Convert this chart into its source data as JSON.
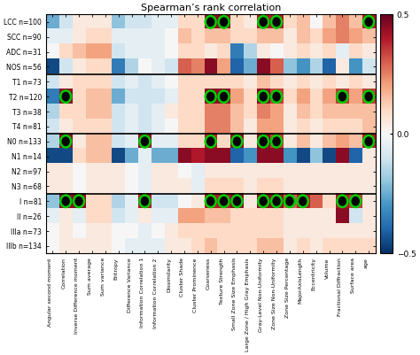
{
  "title": "Spearman’s rank correlation",
  "row_labels": [
    "LCC n=100",
    "SCC n=90",
    "ADC n=31",
    "NOS n=56",
    "T1 n=73",
    "T2 n=120",
    "T3 n=38",
    "T4 n=81",
    "N0 n=133",
    "N1 n=14",
    "N2 n=97",
    "N3 n=68",
    "I n=81",
    "II n=26",
    "IIIa n=73",
    "IIIb n=134"
  ],
  "col_labels": [
    "Angular second moment",
    "Correlation",
    "Inverse Difference moment",
    "Sum average",
    "Sum variance",
    "Entropy",
    "Difference Variance",
    "Information Correlation 1",
    "Information Correlation 2",
    "Dissimilarity",
    "Cluster Shade",
    "Cluster Prominence",
    "Coarseness",
    "Texture Strength",
    "Small Zone Size Emphasis",
    "Large Zone / High Gray Emphasis",
    "Gray-Level Non-Uniformity",
    "Zone Size Non-Uniformity",
    "Zone Size Percentage",
    "MajorAxisLength",
    "Eccentricity",
    "Volume",
    "Fractional Diffraction",
    "Surface area",
    "age"
  ],
  "vmin": -0.5,
  "vmax": 0.5,
  "group_separators": [
    3,
    7,
    11
  ],
  "data": [
    [
      -0.25,
      -0.1,
      0.05,
      0.05,
      0.05,
      -0.2,
      -0.1,
      -0.1,
      -0.05,
      -0.05,
      0.1,
      0.1,
      0.45,
      0.45,
      0.1,
      0.05,
      0.4,
      0.4,
      0.1,
      0.15,
      0.0,
      0.15,
      0.25,
      0.15,
      0.4
    ],
    [
      -0.05,
      -0.05,
      0.05,
      0.1,
      0.1,
      -0.05,
      -0.05,
      -0.05,
      -0.05,
      0.0,
      0.15,
      0.1,
      0.15,
      0.15,
      0.1,
      0.1,
      0.15,
      0.15,
      0.05,
      0.15,
      0.1,
      0.2,
      0.25,
      0.2,
      0.15
    ],
    [
      0.0,
      0.1,
      0.15,
      0.2,
      0.2,
      -0.1,
      -0.05,
      -0.05,
      -0.05,
      0.0,
      0.1,
      0.1,
      0.05,
      0.1,
      -0.35,
      -0.15,
      0.05,
      0.0,
      0.05,
      0.1,
      0.05,
      0.1,
      -0.05,
      0.1,
      0.05
    ],
    [
      -0.45,
      -0.1,
      0.05,
      0.1,
      0.1,
      -0.35,
      -0.15,
      0.0,
      -0.05,
      -0.1,
      0.3,
      0.25,
      0.45,
      0.2,
      -0.4,
      -0.25,
      0.45,
      0.3,
      -0.2,
      -0.3,
      -0.15,
      -0.4,
      0.05,
      -0.3,
      -0.1
    ],
    [
      -0.1,
      0.05,
      0.1,
      0.1,
      0.1,
      -0.1,
      -0.05,
      -0.1,
      -0.05,
      0.0,
      0.1,
      0.1,
      0.1,
      0.1,
      0.1,
      0.05,
      0.15,
      0.1,
      0.05,
      0.1,
      0.05,
      0.1,
      0.05,
      0.1,
      0.05
    ],
    [
      -0.35,
      0.45,
      0.1,
      0.15,
      0.15,
      -0.25,
      -0.1,
      -0.1,
      -0.1,
      -0.05,
      0.1,
      0.1,
      0.45,
      0.45,
      0.2,
      0.1,
      0.45,
      0.35,
      0.1,
      0.2,
      0.1,
      0.2,
      0.35,
      0.2,
      0.35
    ],
    [
      -0.15,
      0.1,
      0.1,
      0.15,
      0.15,
      -0.1,
      -0.05,
      -0.1,
      -0.05,
      0.05,
      0.1,
      0.1,
      0.25,
      0.25,
      0.15,
      0.1,
      0.25,
      0.2,
      0.05,
      0.15,
      0.1,
      0.15,
      0.15,
      0.15,
      0.15
    ],
    [
      -0.1,
      0.05,
      0.1,
      0.1,
      0.1,
      -0.1,
      -0.05,
      -0.1,
      -0.05,
      0.0,
      0.1,
      0.1,
      0.25,
      0.25,
      0.15,
      0.05,
      0.2,
      0.2,
      0.05,
      0.1,
      0.05,
      0.1,
      0.1,
      0.1,
      0.15
    ],
    [
      -0.15,
      0.45,
      0.05,
      0.15,
      0.15,
      -0.1,
      -0.05,
      0.45,
      -0.05,
      -0.05,
      0.1,
      0.1,
      0.4,
      0.1,
      0.45,
      0.05,
      0.45,
      0.35,
      0.05,
      0.15,
      0.05,
      0.15,
      0.2,
      0.15,
      0.4
    ],
    [
      -0.45,
      -0.45,
      0.1,
      0.15,
      0.15,
      -0.45,
      -0.25,
      -0.05,
      -0.25,
      -0.25,
      0.45,
      0.4,
      0.45,
      0.45,
      -0.4,
      -0.3,
      0.45,
      0.45,
      -0.3,
      -0.45,
      -0.2,
      -0.45,
      0.45,
      -0.4,
      0.05
    ],
    [
      0.05,
      0.05,
      0.0,
      0.05,
      0.05,
      0.05,
      0.0,
      -0.05,
      0.05,
      0.05,
      0.0,
      -0.05,
      0.05,
      0.05,
      0.05,
      0.05,
      0.05,
      0.05,
      0.05,
      0.05,
      0.05,
      0.05,
      0.05,
      0.05,
      0.05
    ],
    [
      0.05,
      0.05,
      0.0,
      0.05,
      0.05,
      0.05,
      0.0,
      -0.05,
      0.05,
      0.05,
      0.05,
      -0.05,
      0.1,
      0.1,
      0.1,
      0.05,
      0.1,
      0.1,
      0.05,
      0.05,
      0.05,
      0.05,
      0.05,
      0.05,
      0.05
    ],
    [
      -0.2,
      0.45,
      0.45,
      0.1,
      0.1,
      -0.15,
      -0.05,
      0.4,
      -0.1,
      -0.1,
      0.0,
      0.05,
      0.4,
      0.4,
      0.45,
      0.05,
      0.45,
      0.45,
      0.3,
      0.4,
      0.3,
      0.1,
      0.4,
      0.35,
      0.05
    ],
    [
      -0.05,
      0.05,
      -0.05,
      0.1,
      0.1,
      -0.1,
      -0.05,
      0.05,
      -0.05,
      -0.05,
      0.2,
      0.2,
      0.15,
      0.15,
      0.1,
      0.1,
      0.1,
      0.1,
      0.05,
      0.05,
      0.05,
      0.05,
      0.45,
      -0.1,
      0.05
    ],
    [
      0.0,
      0.05,
      0.0,
      0.05,
      0.05,
      0.0,
      0.0,
      -0.05,
      0.0,
      0.05,
      0.1,
      0.1,
      0.1,
      0.1,
      0.1,
      0.1,
      0.1,
      0.1,
      0.05,
      0.05,
      0.05,
      0.05,
      0.05,
      0.05,
      0.05
    ],
    [
      0.0,
      0.05,
      0.05,
      0.05,
      0.05,
      0.0,
      -0.05,
      -0.05,
      -0.05,
      0.05,
      0.05,
      0.1,
      0.15,
      0.1,
      0.1,
      0.1,
      0.15,
      0.15,
      0.05,
      0.1,
      0.05,
      0.1,
      0.1,
      0.1,
      0.1
    ]
  ],
  "significant": [
    [
      [
        0,
        12
      ],
      [
        0,
        13
      ],
      [
        0,
        16
      ],
      [
        0,
        17
      ],
      [
        0,
        24
      ]
    ],
    [],
    [],
    [],
    [],
    [
      [
        5,
        1
      ],
      [
        5,
        12
      ],
      [
        5,
        13
      ],
      [
        5,
        16
      ],
      [
        5,
        17
      ],
      [
        5,
        22
      ],
      [
        5,
        24
      ]
    ],
    [],
    [],
    [
      [
        8,
        1
      ],
      [
        8,
        7
      ],
      [
        8,
        12
      ],
      [
        8,
        14
      ],
      [
        8,
        16
      ],
      [
        8,
        17
      ],
      [
        8,
        24
      ]
    ],
    [],
    [],
    [],
    [
      [
        12,
        1
      ],
      [
        12,
        2
      ],
      [
        12,
        7
      ],
      [
        12,
        12
      ],
      [
        12,
        13
      ],
      [
        12,
        14
      ],
      [
        12,
        16
      ],
      [
        12,
        17
      ],
      [
        12,
        18
      ],
      [
        12,
        19
      ],
      [
        12,
        22
      ],
      [
        12,
        23
      ]
    ],
    [],
    [],
    []
  ],
  "figsize": [
    4.74,
    4.01
  ],
  "dpi": 100
}
